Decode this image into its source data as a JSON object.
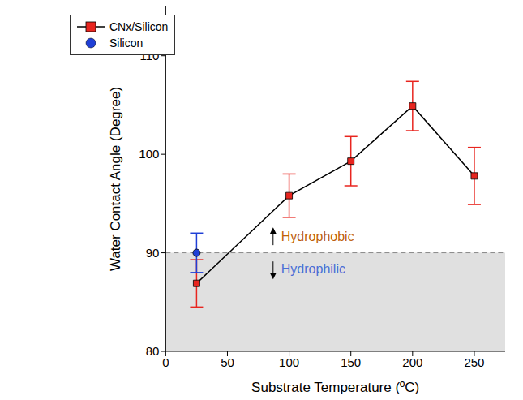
{
  "chart_data": {
    "type": "scatter",
    "x_label": "Substrate Temperature (ºC)",
    "y_label": "Water Contact Angle (Degree)",
    "xlim": [
      0,
      275
    ],
    "xticks": [
      0,
      50,
      100,
      150,
      200,
      250
    ],
    "ylim": [
      80,
      115
    ],
    "yticks": [
      80,
      90,
      100,
      110
    ],
    "legend": "upper left",
    "reference_y": 90,
    "series": [
      {
        "name": "CNx/Silicon",
        "color": "#e8251f",
        "marker": "square",
        "line_style": "solid",
        "x": [
          25,
          100,
          150,
          200,
          250
        ],
        "values": [
          86.9,
          95.8,
          99.3,
          104.9,
          97.8
        ],
        "errors": [
          2.4,
          2.2,
          2.5,
          2.5,
          2.9
        ]
      },
      {
        "name": "Silicon",
        "color": "#1f3fd6",
        "marker": "circle",
        "line_style": "none",
        "x": [
          25
        ],
        "values": [
          90.0
        ],
        "errors": [
          2.0
        ]
      }
    ],
    "annotations": [
      {
        "text": "Hydrophobic",
        "x": 87,
        "y": 91.6,
        "color": "#c0620a"
      },
      {
        "text": "Hydrophilic",
        "x": 87,
        "y": 88.3,
        "color": "#4a6fd6"
      }
    ]
  }
}
